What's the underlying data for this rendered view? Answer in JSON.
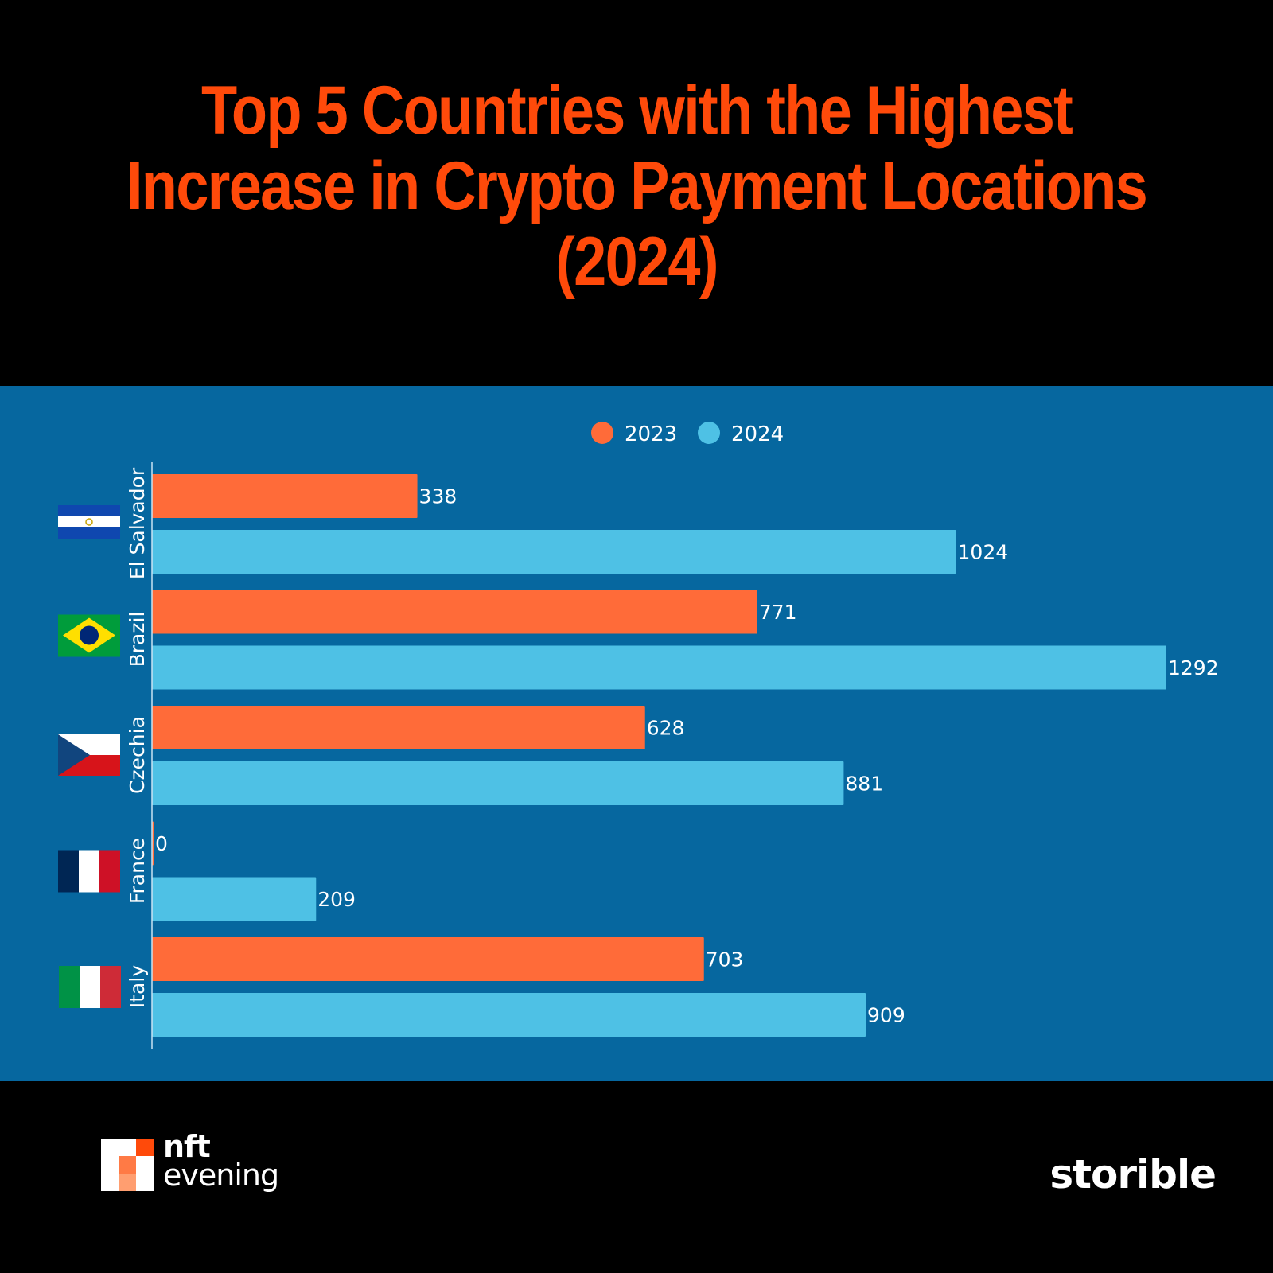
{
  "title": "Top 5 Countries with the Highest Increase in Crypto Payment Locations (2024)",
  "colors": {
    "series_2023": "#ff6b39",
    "series_2024": "#4ec1e5",
    "panel": "#06679f",
    "title": "#ff4a0a"
  },
  "chart_data": {
    "type": "bar",
    "orientation": "horizontal",
    "categories": [
      "El Salvador",
      "Brazil",
      "Czechia",
      "France",
      "Italy"
    ],
    "series": [
      {
        "name": "2023",
        "values": [
          338,
          771,
          628,
          0,
          703
        ]
      },
      {
        "name": "2024",
        "values": [
          1024,
          1292,
          881,
          209,
          909
        ]
      }
    ],
    "xlim": [
      0,
      1292
    ],
    "grid": false,
    "legend_position": "top-center",
    "data_labels": true
  },
  "footer": {
    "left_logo_line1": "nft",
    "left_logo_line2": "evening",
    "right_logo": "storible"
  }
}
